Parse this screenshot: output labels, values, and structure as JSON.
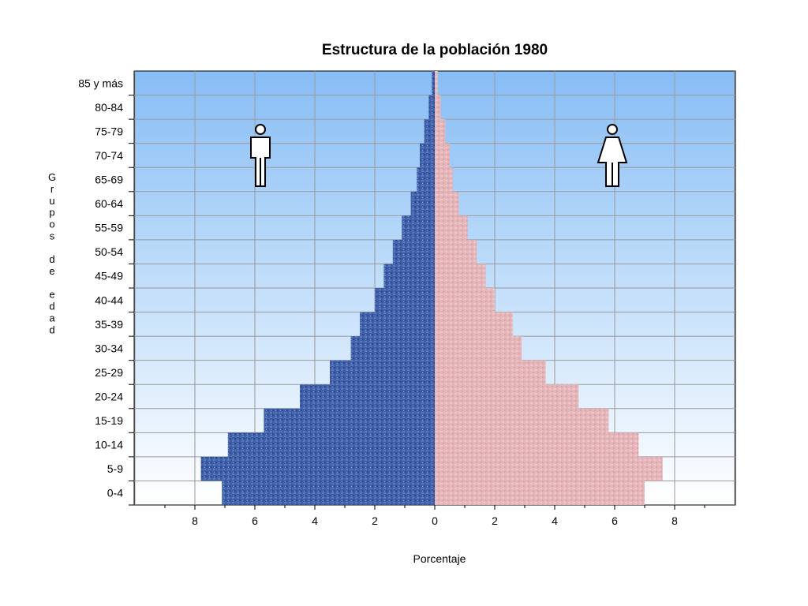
{
  "chart_data": {
    "type": "bar",
    "orientation": "horizontal-pyramid",
    "title": "Estructura de la población 1980",
    "xlabel": "Porcentaje",
    "ylabel": "Grupos de edad",
    "xlim": [
      -10,
      10
    ],
    "x_ticks": [
      8,
      6,
      4,
      2,
      0,
      2,
      4,
      6,
      8
    ],
    "x_tick_values": [
      -8,
      -6,
      -4,
      -2,
      0,
      2,
      4,
      6,
      8
    ],
    "grid": true,
    "categories": [
      "0-4",
      "5-9",
      "10-14",
      "15-19",
      "20-24",
      "25-29",
      "30-34",
      "35-39",
      "40-44",
      "45-49",
      "50-54",
      "55-59",
      "60-64",
      "65-69",
      "70-74",
      "75-79",
      "80-84",
      "85 y más"
    ],
    "series": [
      {
        "side": "left",
        "icon": "male-icon",
        "color": "#3a5aa6",
        "values": [
          7.1,
          7.8,
          6.9,
          5.7,
          4.5,
          3.5,
          2.8,
          2.5,
          2.0,
          1.7,
          1.4,
          1.1,
          0.8,
          0.6,
          0.5,
          0.35,
          0.2,
          0.1
        ]
      },
      {
        "side": "right",
        "icon": "female-icon",
        "color": "#e6b8bc",
        "values": [
          7.0,
          7.6,
          6.8,
          5.8,
          4.8,
          3.7,
          2.9,
          2.6,
          2.0,
          1.7,
          1.4,
          1.1,
          0.8,
          0.6,
          0.5,
          0.35,
          0.2,
          0.1
        ]
      }
    ]
  }
}
